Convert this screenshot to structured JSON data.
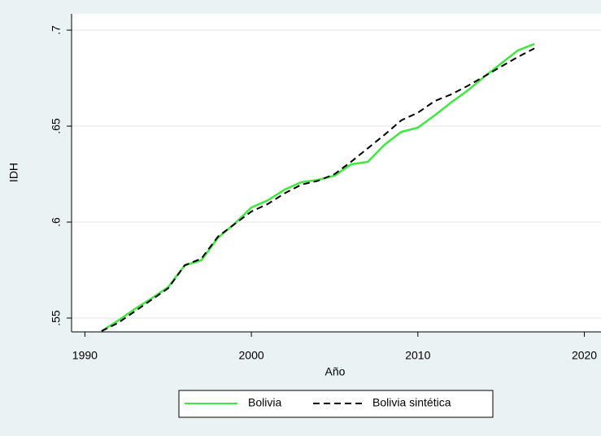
{
  "chart_data": {
    "type": "line",
    "xlabel": "Año",
    "ylabel": "IDH",
    "x": [
      1991,
      1992,
      1993,
      1994,
      1995,
      1996,
      1997,
      1998,
      1999,
      2000,
      2001,
      2002,
      2003,
      2004,
      2005,
      2006,
      2007,
      2008,
      2009,
      2010,
      2011,
      2012,
      2013,
      2014,
      2015,
      2016,
      2017
    ],
    "series": [
      {
        "name": "Bolivia",
        "color": "#3ee83e",
        "dash": false,
        "values": [
          0.5432,
          0.5487,
          0.5547,
          0.5602,
          0.5661,
          0.5775,
          0.5801,
          0.5919,
          0.5992,
          0.6076,
          0.6114,
          0.6169,
          0.6208,
          0.622,
          0.6242,
          0.6301,
          0.6314,
          0.6403,
          0.647,
          0.6492,
          0.6555,
          0.6623,
          0.6686,
          0.6758,
          0.6826,
          0.6894,
          0.6928
        ]
      },
      {
        "name": "Bolivia sintética",
        "color": "#000000",
        "dash": true,
        "values": [
          0.5432,
          0.5475,
          0.5535,
          0.5595,
          0.5655,
          0.5775,
          0.581,
          0.5925,
          0.599,
          0.6055,
          0.6095,
          0.615,
          0.6195,
          0.6215,
          0.625,
          0.6315,
          0.6385,
          0.6455,
          0.653,
          0.657,
          0.663,
          0.6665,
          0.671,
          0.676,
          0.681,
          0.686,
          0.6905
        ]
      }
    ],
    "xlim": [
      1989.2,
      2021
    ],
    "xticks": [
      1990,
      2000,
      2010,
      2020
    ],
    "ylim": [
      0.5428,
      0.7085
    ],
    "yticks": [
      {
        "value": 0.55,
        "label": ".55"
      },
      {
        "value": 0.6,
        "label": ".6"
      },
      {
        "value": 0.65,
        "label": ".65"
      },
      {
        "value": 0.7,
        "label": ".7"
      }
    ],
    "grid": true,
    "legend": "bottom"
  }
}
